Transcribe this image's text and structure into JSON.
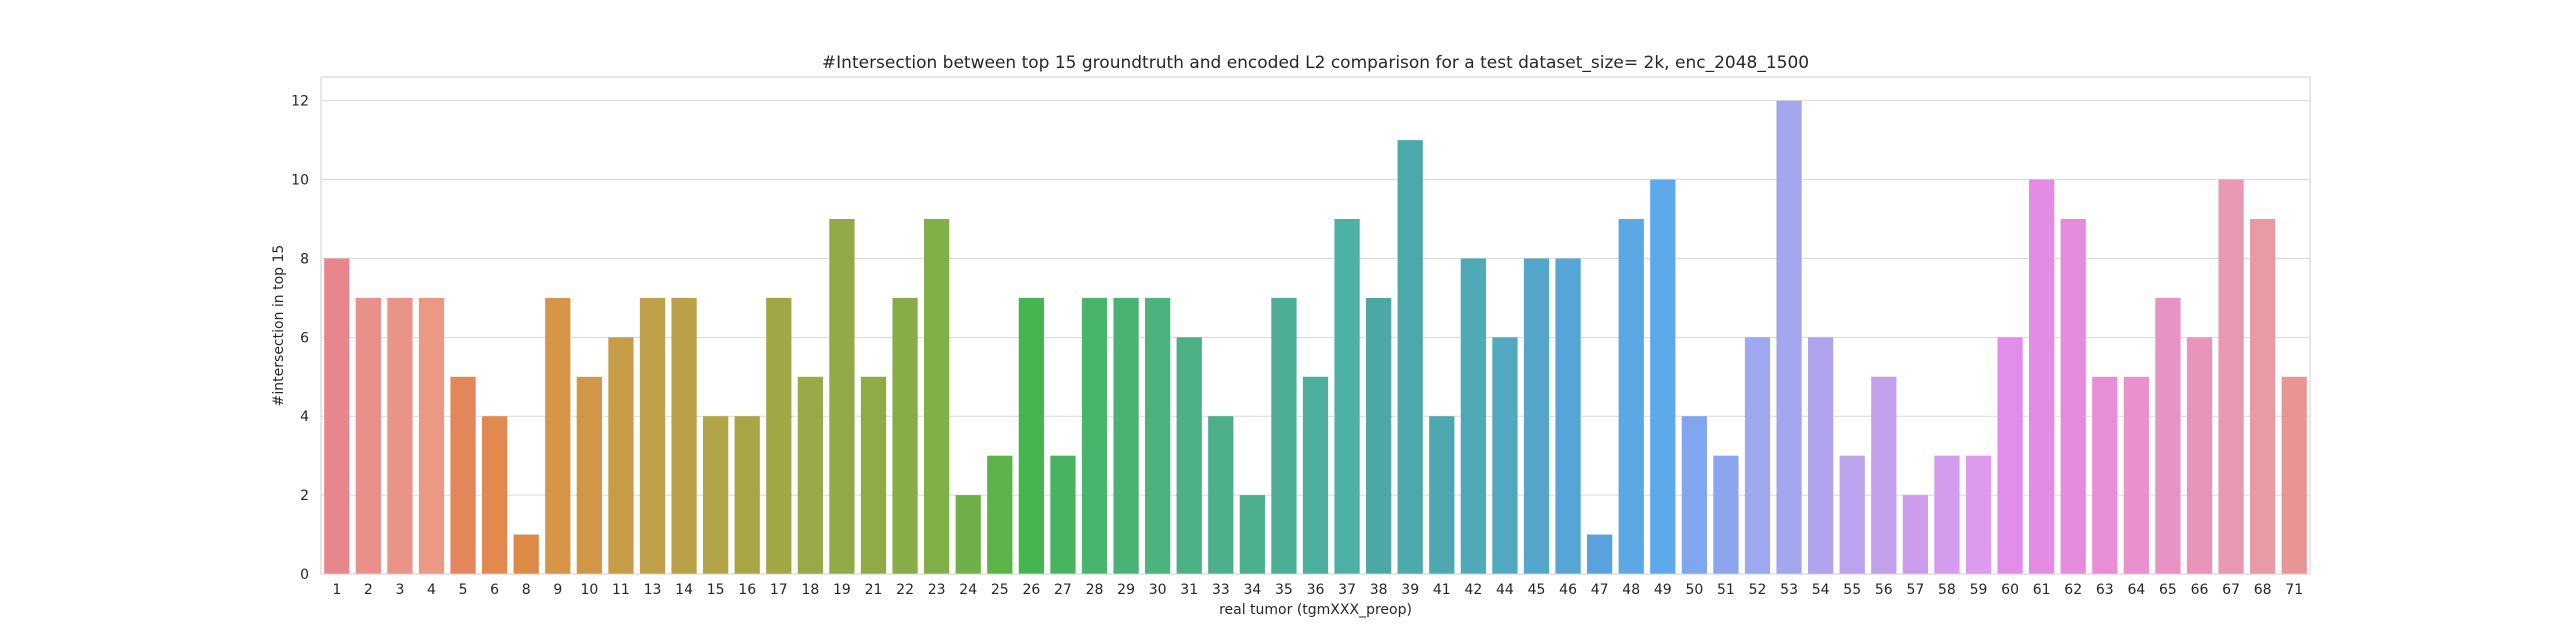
{
  "chart_data": {
    "type": "bar",
    "title": "#Intersection between top 15 groundtruth and encoded L2 comparison for a test dataset_size= 2k, enc_2048_1500",
    "xlabel": "real tumor (tgmXXX_preop)",
    "ylabel": "#intersection in top 15",
    "ylim": [
      0,
      12.6
    ],
    "yticks": [
      "0",
      "2",
      "4",
      "6",
      "8",
      "10",
      "12"
    ],
    "grid": true,
    "categories": [
      "1",
      "2",
      "3",
      "4",
      "5",
      "6",
      "8",
      "9",
      "10",
      "11",
      "13",
      "14",
      "15",
      "16",
      "17",
      "18",
      "19",
      "21",
      "22",
      "23",
      "24",
      "25",
      "26",
      "27",
      "28",
      "29",
      "30",
      "31",
      "33",
      "34",
      "35",
      "36",
      "37",
      "38",
      "39",
      "41",
      "42",
      "44",
      "45",
      "46",
      "47",
      "48",
      "49",
      "50",
      "51",
      "52",
      "53",
      "54",
      "55",
      "56",
      "57",
      "58",
      "59",
      "60",
      "61",
      "62",
      "63",
      "64",
      "65",
      "66",
      "67",
      "68",
      "71"
    ],
    "values": [
      8,
      7,
      7,
      7,
      5,
      4,
      1,
      7,
      5,
      6,
      7,
      7,
      4,
      4,
      7,
      5,
      9,
      5,
      7,
      9,
      2,
      3,
      7,
      3,
      7,
      7,
      7,
      6,
      4,
      2,
      7,
      5,
      9,
      7,
      11,
      4,
      8,
      6,
      8,
      8,
      1,
      9,
      10,
      4,
      3,
      6,
      12,
      6,
      3,
      5,
      2,
      3,
      3,
      6,
      10,
      9,
      5,
      5,
      7,
      6,
      10,
      9,
      5
    ],
    "colors": [
      "#e8878b",
      "#e9908a",
      "#ea9389",
      "#eb9885",
      "#e4865c",
      "#e1894f",
      "#dc8a45",
      "#d69548",
      "#cf9747",
      "#c69d47",
      "#bf9f47",
      "#baa147",
      "#b0a447",
      "#a8a547",
      "#a1a747",
      "#9aa947",
      "#91aa47",
      "#8eab47",
      "#88ac47",
      "#80b047",
      "#6eb047",
      "#5cb347",
      "#46b54f",
      "#48b45f",
      "#49b46b",
      "#4ab273",
      "#4bb27e",
      "#4bb084",
      "#4caf8a",
      "#4caf8f",
      "#4cae96",
      "#4caf9d",
      "#4db0a4",
      "#4ca8a5",
      "#4ca9ab",
      "#4ea8b0",
      "#4fa9b7",
      "#51a8c0",
      "#54a7cb",
      "#56a5d6",
      "#59a2dd",
      "#5ca8e4",
      "#5ea9ea",
      "#82a5ef",
      "#8ba6ef",
      "#9da8ef",
      "#a5a7ee",
      "#b1a3ed",
      "#bba3ed",
      "#c2a1ec",
      "#cd9ded",
      "#d39ced",
      "#dd9bed",
      "#e18de9",
      "#e48ce4",
      "#e68cdd",
      "#e88ed6",
      "#e990cd",
      "#e893c3",
      "#e895b9",
      "#e898b1",
      "#e89aa5",
      "#e99596"
    ]
  }
}
